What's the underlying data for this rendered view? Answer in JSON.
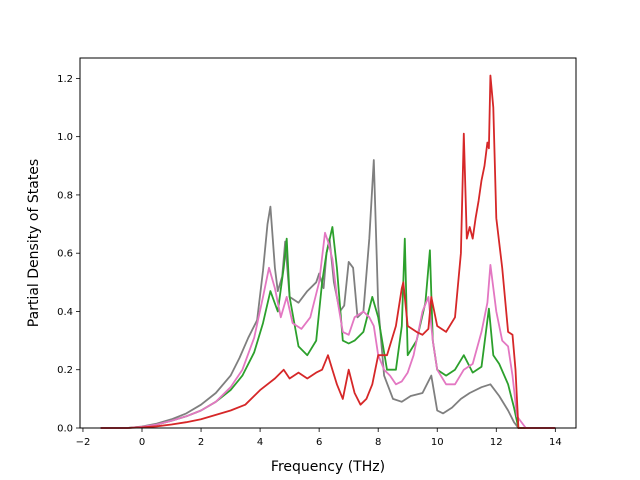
{
  "chart_data": {
    "type": "line",
    "title": "",
    "xlabel": "Frequency (THz)",
    "ylabel": "Partial Density of States",
    "xlim": [
      -2.1,
      14.7
    ],
    "ylim": [
      0.0,
      1.27
    ],
    "xticks": [
      -2,
      0,
      2,
      4,
      6,
      8,
      10,
      12,
      14
    ],
    "yticks": [
      0.0,
      0.2,
      0.4,
      0.6,
      0.8,
      1.0,
      1.2
    ],
    "xtick_labels": [
      "−2",
      "0",
      "2",
      "4",
      "6",
      "8",
      "10",
      "12",
      "14"
    ],
    "ytick_labels": [
      "0.0",
      "0.2",
      "0.4",
      "0.6",
      "0.8",
      "1.0",
      "1.2"
    ],
    "grid": false,
    "legend": "none",
    "series": [
      {
        "color": "#7f7f7f",
        "x": [
          -1.4,
          -0.5,
          0.0,
          0.5,
          1.0,
          1.5,
          2.0,
          2.5,
          3.0,
          3.3,
          3.6,
          3.9,
          4.1,
          4.25,
          4.35,
          4.5,
          4.6,
          4.75,
          4.85,
          5.0,
          5.3,
          5.6,
          5.9,
          6.0,
          6.15,
          6.25,
          6.35,
          6.5,
          6.7,
          6.85,
          7.0,
          7.15,
          7.3,
          7.5,
          7.7,
          7.85,
          8.0,
          8.2,
          8.5,
          8.8,
          9.1,
          9.5,
          9.8,
          10.0,
          10.2,
          10.5,
          10.8,
          11.1,
          11.5,
          11.8,
          12.1,
          12.4,
          12.6,
          12.75,
          13.0,
          14.0
        ],
        "values": [
          0.0,
          0.0,
          0.005,
          0.015,
          0.03,
          0.05,
          0.08,
          0.12,
          0.18,
          0.24,
          0.31,
          0.37,
          0.54,
          0.7,
          0.76,
          0.55,
          0.47,
          0.52,
          0.64,
          0.45,
          0.43,
          0.47,
          0.5,
          0.53,
          0.48,
          0.6,
          0.65,
          0.5,
          0.4,
          0.42,
          0.57,
          0.55,
          0.38,
          0.4,
          0.65,
          0.92,
          0.42,
          0.18,
          0.1,
          0.09,
          0.11,
          0.12,
          0.18,
          0.06,
          0.05,
          0.07,
          0.1,
          0.12,
          0.14,
          0.15,
          0.11,
          0.06,
          0.02,
          0.0,
          0.0,
          0.0
        ]
      },
      {
        "color": "#2ca02c",
        "x": [
          -1.4,
          -0.5,
          0.0,
          0.5,
          1.0,
          1.5,
          2.0,
          2.5,
          3.0,
          3.4,
          3.8,
          4.1,
          4.35,
          4.6,
          4.8,
          4.9,
          5.0,
          5.3,
          5.6,
          5.9,
          6.1,
          6.25,
          6.45,
          6.6,
          6.8,
          7.0,
          7.2,
          7.5,
          7.8,
          8.0,
          8.3,
          8.6,
          8.8,
          8.9,
          9.0,
          9.3,
          9.6,
          9.75,
          9.85,
          10.0,
          10.3,
          10.6,
          10.9,
          11.2,
          11.5,
          11.75,
          11.9,
          12.1,
          12.4,
          12.6,
          12.75,
          13.0,
          14.0
        ],
        "values": [
          0.0,
          0.0,
          0.004,
          0.012,
          0.025,
          0.04,
          0.06,
          0.09,
          0.13,
          0.18,
          0.26,
          0.36,
          0.47,
          0.4,
          0.55,
          0.65,
          0.45,
          0.28,
          0.25,
          0.3,
          0.5,
          0.6,
          0.69,
          0.55,
          0.3,
          0.29,
          0.3,
          0.33,
          0.45,
          0.38,
          0.2,
          0.2,
          0.35,
          0.65,
          0.25,
          0.3,
          0.43,
          0.61,
          0.3,
          0.2,
          0.18,
          0.2,
          0.25,
          0.19,
          0.21,
          0.41,
          0.25,
          0.22,
          0.15,
          0.07,
          0.0,
          0.0,
          0.0
        ]
      },
      {
        "color": "#e377c2",
        "x": [
          -1.4,
          -0.5,
          0.0,
          0.5,
          1.0,
          1.5,
          2.0,
          2.5,
          3.0,
          3.4,
          3.8,
          4.1,
          4.3,
          4.5,
          4.7,
          4.9,
          5.1,
          5.4,
          5.7,
          6.0,
          6.2,
          6.3,
          6.45,
          6.6,
          6.8,
          7.0,
          7.2,
          7.5,
          7.7,
          7.85,
          8.0,
          8.2,
          8.4,
          8.6,
          8.8,
          9.0,
          9.2,
          9.5,
          9.7,
          9.85,
          10.0,
          10.3,
          10.6,
          10.9,
          11.2,
          11.5,
          11.7,
          11.8,
          12.0,
          12.2,
          12.4,
          12.55,
          12.7,
          13.0,
          14.0
        ],
        "values": [
          0.0,
          0.0,
          0.004,
          0.012,
          0.025,
          0.04,
          0.06,
          0.09,
          0.14,
          0.2,
          0.31,
          0.45,
          0.55,
          0.48,
          0.38,
          0.45,
          0.36,
          0.34,
          0.38,
          0.5,
          0.67,
          0.64,
          0.58,
          0.45,
          0.33,
          0.32,
          0.38,
          0.4,
          0.38,
          0.35,
          0.25,
          0.2,
          0.18,
          0.15,
          0.16,
          0.19,
          0.25,
          0.4,
          0.45,
          0.3,
          0.2,
          0.15,
          0.15,
          0.2,
          0.22,
          0.33,
          0.43,
          0.56,
          0.4,
          0.3,
          0.28,
          0.18,
          0.04,
          0.0,
          0.0
        ]
      },
      {
        "color": "#d62728",
        "x": [
          -1.4,
          -0.5,
          0.0,
          0.5,
          1.0,
          1.5,
          2.0,
          2.5,
          3.0,
          3.5,
          4.0,
          4.5,
          4.8,
          5.0,
          5.3,
          5.6,
          5.9,
          6.1,
          6.3,
          6.45,
          6.6,
          6.8,
          7.0,
          7.2,
          7.4,
          7.6,
          7.8,
          8.0,
          8.3,
          8.6,
          8.8,
          8.85,
          9.0,
          9.3,
          9.5,
          9.7,
          9.8,
          10.0,
          10.3,
          10.6,
          10.8,
          10.9,
          11.0,
          11.1,
          11.2,
          11.3,
          11.4,
          11.5,
          11.6,
          11.7,
          11.75,
          11.8,
          11.9,
          12.0,
          12.2,
          12.4,
          12.55,
          12.65,
          12.75,
          13.0,
          14.0
        ],
        "values": [
          0.0,
          0.0,
          0.002,
          0.006,
          0.012,
          0.02,
          0.03,
          0.045,
          0.06,
          0.08,
          0.13,
          0.17,
          0.2,
          0.17,
          0.19,
          0.17,
          0.19,
          0.2,
          0.25,
          0.2,
          0.15,
          0.1,
          0.2,
          0.12,
          0.08,
          0.1,
          0.15,
          0.25,
          0.25,
          0.35,
          0.48,
          0.5,
          0.35,
          0.33,
          0.32,
          0.34,
          0.45,
          0.35,
          0.33,
          0.38,
          0.6,
          1.01,
          0.65,
          0.69,
          0.65,
          0.72,
          0.78,
          0.85,
          0.9,
          0.98,
          0.96,
          1.21,
          1.1,
          0.72,
          0.55,
          0.33,
          0.32,
          0.2,
          0.0,
          0.0,
          0.0
        ]
      }
    ]
  }
}
